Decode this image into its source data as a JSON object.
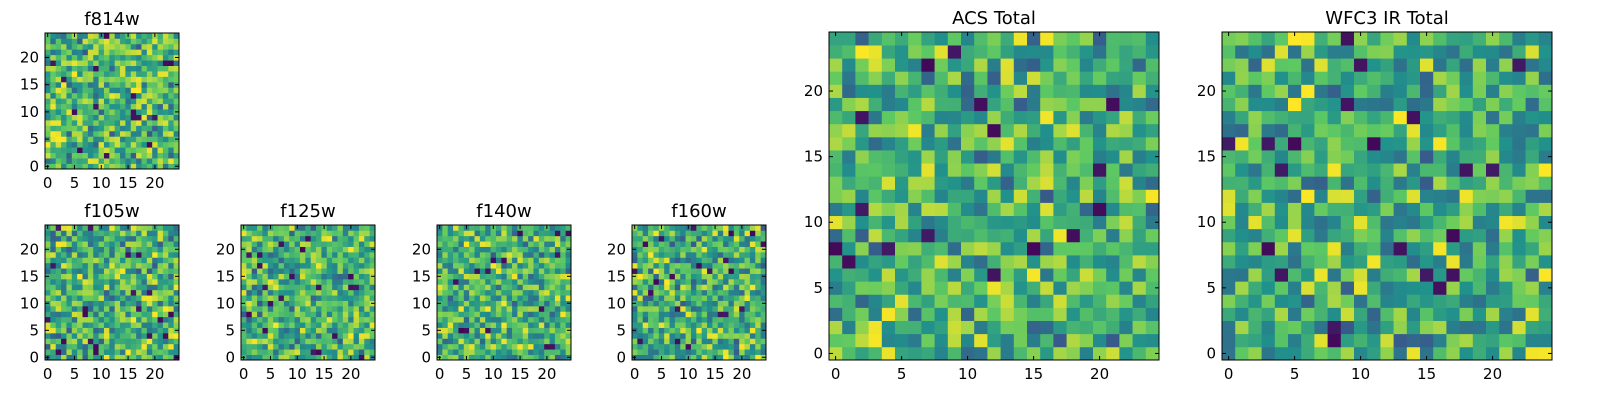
{
  "figure": {
    "colormap": "viridis",
    "colormap_stops": [
      "#440154",
      "#3b528b",
      "#21918c",
      "#5ec962",
      "#fde725"
    ]
  },
  "chart_data": [
    {
      "type": "heatmap",
      "title": "f814w",
      "grid_size": 25,
      "x_ticks": [
        "0",
        "5",
        "10",
        "15",
        "20"
      ],
      "y_ticks": [
        "0",
        "5",
        "10",
        "15",
        "20"
      ],
      "xlim": [
        0,
        25
      ],
      "ylim": [
        0,
        25
      ],
      "value_range": [
        0,
        1
      ],
      "seed": 11,
      "typical_level": 0.68
    },
    {
      "type": "heatmap",
      "title": "f105w",
      "grid_size": 25,
      "x_ticks": [
        "0",
        "5",
        "10",
        "15",
        "20"
      ],
      "y_ticks": [
        "0",
        "5",
        "10",
        "15",
        "20"
      ],
      "xlim": [
        0,
        25
      ],
      "ylim": [
        0,
        25
      ],
      "value_range": [
        0,
        1
      ],
      "seed": 23,
      "typical_level": 0.65
    },
    {
      "type": "heatmap",
      "title": "f125w",
      "grid_size": 25,
      "x_ticks": [
        "0",
        "5",
        "10",
        "15",
        "20"
      ],
      "y_ticks": [
        "0",
        "5",
        "10",
        "15",
        "20"
      ],
      "xlim": [
        0,
        25
      ],
      "ylim": [
        0,
        25
      ],
      "value_range": [
        0,
        1
      ],
      "seed": 37,
      "typical_level": 0.66
    },
    {
      "type": "heatmap",
      "title": "f140w",
      "grid_size": 25,
      "x_ticks": [
        "0",
        "5",
        "10",
        "15",
        "20"
      ],
      "y_ticks": [
        "0",
        "5",
        "10",
        "15",
        "20"
      ],
      "xlim": [
        0,
        25
      ],
      "ylim": [
        0,
        25
      ],
      "value_range": [
        0,
        1
      ],
      "seed": 41,
      "typical_level": 0.64
    },
    {
      "type": "heatmap",
      "title": "f160w",
      "grid_size": 25,
      "x_ticks": [
        "0",
        "5",
        "10",
        "15",
        "20"
      ],
      "y_ticks": [
        "0",
        "5",
        "10",
        "15",
        "20"
      ],
      "xlim": [
        0,
        25
      ],
      "ylim": [
        0,
        25
      ],
      "value_range": [
        0,
        1
      ],
      "seed": 53,
      "typical_level": 0.63
    },
    {
      "type": "heatmap",
      "title": "ACS Total",
      "grid_size": 25,
      "x_ticks": [
        "0",
        "5",
        "10",
        "15",
        "20"
      ],
      "y_ticks": [
        "0",
        "5",
        "10",
        "15",
        "20"
      ],
      "xlim": [
        0,
        25
      ],
      "ylim": [
        0,
        25
      ],
      "value_range": [
        0,
        1
      ],
      "seed": 67,
      "typical_level": 0.66
    },
    {
      "type": "heatmap",
      "title": "WFC3 IR Total",
      "grid_size": 25,
      "x_ticks": [
        "0",
        "5",
        "10",
        "15",
        "20"
      ],
      "y_ticks": [
        "0",
        "5",
        "10",
        "15",
        "20"
      ],
      "xlim": [
        0,
        25
      ],
      "ylim": [
        0,
        25
      ],
      "value_range": [
        0,
        1
      ],
      "seed": 79,
      "typical_level": 0.62
    }
  ]
}
